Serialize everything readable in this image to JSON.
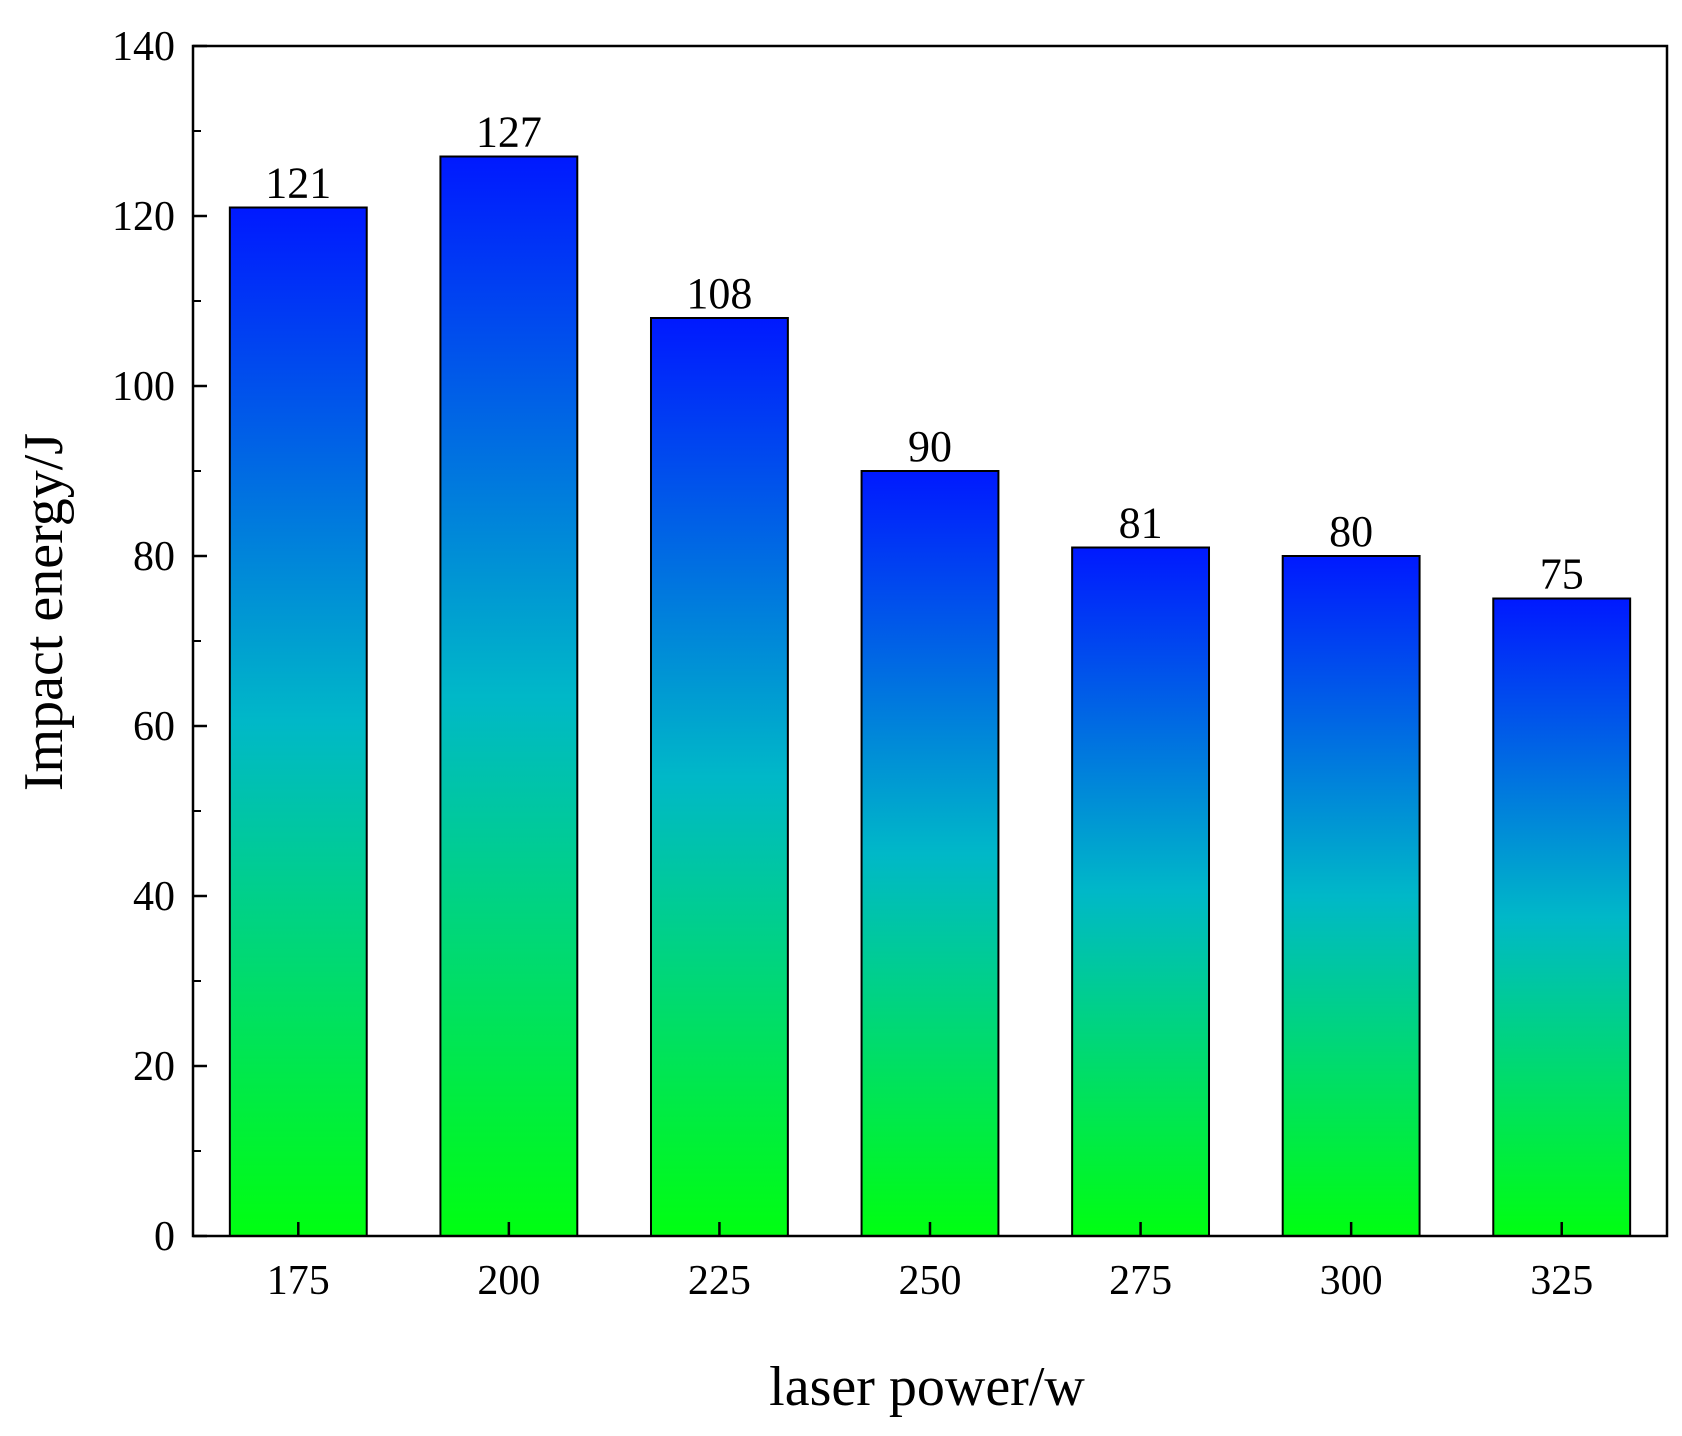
{
  "chart_data": {
    "type": "bar",
    "xlabel": "laser power/w",
    "ylabel": "Impact energy/J",
    "categories": [
      "175",
      "200",
      "225",
      "250",
      "275",
      "300",
      "325"
    ],
    "values": [
      121,
      127,
      108,
      90,
      81,
      80,
      75
    ],
    "data_labels": [
      "121",
      "127",
      "108",
      "90",
      "81",
      "80",
      "75"
    ],
    "y_ticks": [
      "0",
      "20",
      "40",
      "60",
      "80",
      "100",
      "120",
      "140"
    ],
    "ylim": [
      0,
      140
    ],
    "grid": false,
    "legend": "none",
    "bar_gradient": {
      "top": "#0019ff",
      "bottom": "#00ff11"
    }
  }
}
